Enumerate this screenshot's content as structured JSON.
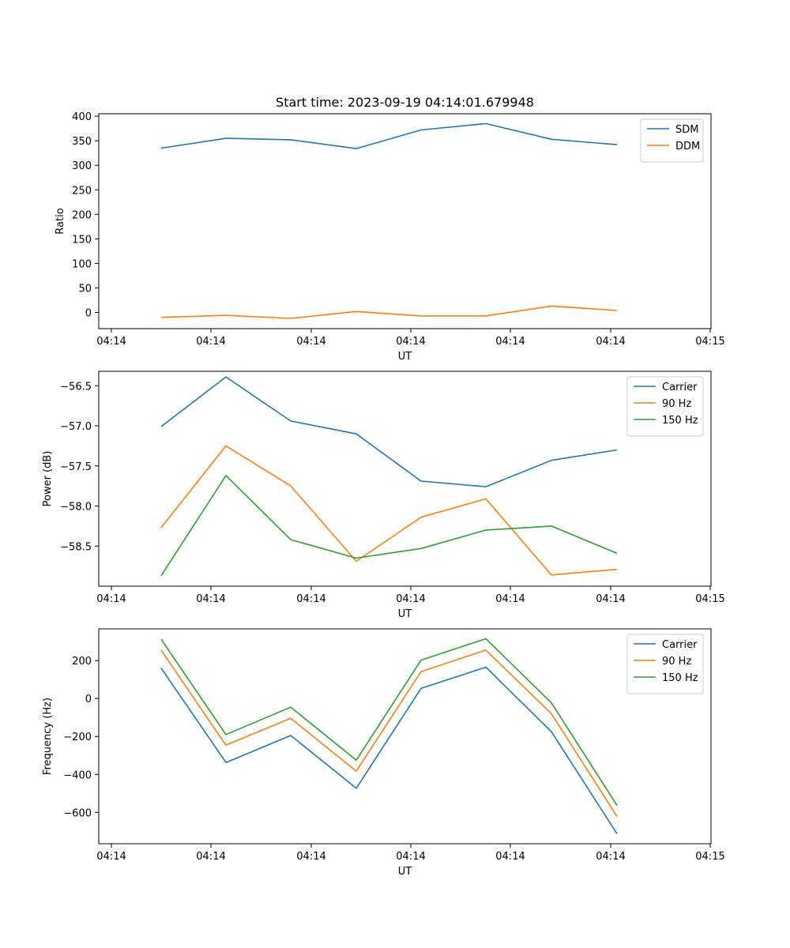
{
  "chart_data": [
    {
      "type": "line",
      "title": "Start time: 2023-09-19 04:14:01.679948",
      "xlabel": "UT",
      "ylabel": "Ratio",
      "x_tick_labels": [
        "04:14",
        "04:14",
        "04:14",
        "04:14",
        "04:14",
        "04:14",
        "04:14",
        "04:15"
      ],
      "ylim": [
        -33,
        405
      ],
      "yticks": [
        0,
        50,
        100,
        150,
        200,
        250,
        300,
        350,
        400
      ],
      "ytick_labels": [
        "0",
        "50",
        "100",
        "150",
        "200",
        "250",
        "300",
        "350",
        "400"
      ],
      "legend": "top-right",
      "series": [
        {
          "name": "SDM",
          "color": "#1f77b4",
          "values": [
            335,
            355,
            352,
            334,
            372,
            385,
            353,
            342
          ]
        },
        {
          "name": "DDM",
          "color": "#ff7f0e",
          "values": [
            -10,
            -6,
            -12,
            2,
            -7,
            -7,
            13,
            4
          ]
        }
      ]
    },
    {
      "type": "line",
      "title": "",
      "xlabel": "UT",
      "ylabel": "Power (dB)",
      "x_tick_labels": [
        "04:14",
        "04:14",
        "04:14",
        "04:14",
        "04:14",
        "04:14",
        "04:14",
        "04:15"
      ],
      "ylim": [
        -59.0,
        -56.32
      ],
      "yticks": [
        -58.5,
        -58.0,
        -57.5,
        -57.0,
        -56.5
      ],
      "ytick_labels": [
        "−58.5",
        "−58.0",
        "−57.5",
        "−57.0",
        "−56.5"
      ],
      "legend": "top-right",
      "series": [
        {
          "name": "Carrier",
          "color": "#1f77b4",
          "values": [
            -57.01,
            -56.39,
            -56.94,
            -57.1,
            -57.69,
            -57.76,
            -57.43,
            -57.3
          ]
        },
        {
          "name": "90 Hz",
          "color": "#ff7f0e",
          "values": [
            -58.27,
            -57.25,
            -57.75,
            -58.69,
            -58.14,
            -57.91,
            -58.86,
            -58.79
          ]
        },
        {
          "name": "150 Hz",
          "color": "#2ca02c",
          "values": [
            -58.87,
            -57.62,
            -58.42,
            -58.65,
            -58.53,
            -58.3,
            -58.25,
            -58.59
          ]
        }
      ]
    },
    {
      "type": "line",
      "title": "",
      "xlabel": "UT",
      "ylabel": "Frequency (Hz)",
      "x_tick_labels": [
        "04:14",
        "04:14",
        "04:14",
        "04:14",
        "04:14",
        "04:14",
        "04:14",
        "04:15"
      ],
      "ylim": [
        -765,
        367
      ],
      "yticks": [
        -600,
        -400,
        -200,
        0,
        200
      ],
      "ytick_labels": [
        "−600",
        "−400",
        "−200",
        "0",
        "200"
      ],
      "legend": "top-right",
      "series": [
        {
          "name": "Carrier",
          "color": "#1f77b4",
          "values": [
            160,
            -337,
            -195,
            -473,
            53,
            165,
            -175,
            -712
          ]
        },
        {
          "name": "90 Hz",
          "color": "#ff7f0e",
          "values": [
            255,
            -246,
            -104,
            -383,
            142,
            255,
            -80,
            -621
          ]
        },
        {
          "name": "150 Hz",
          "color": "#2ca02c",
          "values": [
            312,
            -190,
            -46,
            -325,
            202,
            315,
            -23,
            -563
          ]
        }
      ]
    }
  ]
}
